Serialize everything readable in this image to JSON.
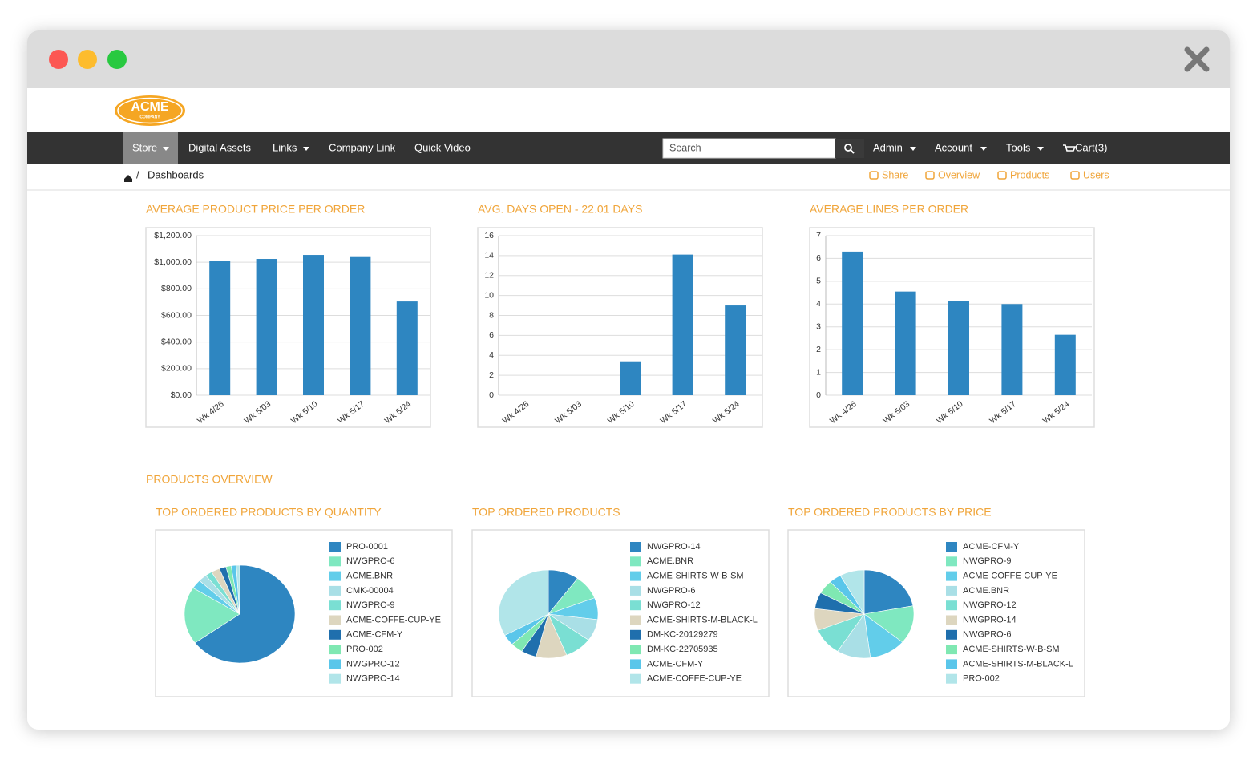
{
  "logo": {
    "name": "ACME",
    "sub": "COMPANY"
  },
  "nav": {
    "left": [
      "Store",
      "Digital Assets",
      "Links",
      "Company Link",
      "Quick Video"
    ],
    "search_placeholder": "Search",
    "right": [
      "Admin",
      "Account",
      "Tools",
      "Cart(3)"
    ]
  },
  "breadcrumb": "Dashboards",
  "actions": [
    "Share",
    "Overview",
    "Products",
    "Users"
  ],
  "section_title": "PRODUCTS OVERVIEW",
  "chart_data": [
    {
      "type": "bar",
      "title": "AVERAGE PRODUCT PRICE PER ORDER",
      "categories": [
        "Wk 4/26",
        "Wk 5/03",
        "Wk 5/10",
        "Wk 5/17",
        "Wk 5/24"
      ],
      "values": [
        1010,
        1025,
        1055,
        1045,
        705
      ],
      "color": "#2e86c1",
      "ylim": [
        0,
        1200
      ],
      "yticks": [
        {
          "value": 0,
          "label": "$0.00"
        },
        {
          "value": 200,
          "label": "$200.00"
        },
        {
          "value": 400,
          "label": "$400.00"
        },
        {
          "value": 600,
          "label": "$600.00"
        },
        {
          "value": 800,
          "label": "$800.00"
        },
        {
          "value": 1000,
          "label": "$1,000.00"
        },
        {
          "value": 1200,
          "label": "$1,200.00"
        }
      ],
      "grid": true
    },
    {
      "type": "bar",
      "title": "AVG. DAYS OPEN - 22.01 DAYS",
      "categories": [
        "Wk 4/26",
        "Wk 5/03",
        "Wk 5/10",
        "Wk 5/17",
        "Wk 5/24"
      ],
      "values": [
        0,
        0,
        3.4,
        14.1,
        9.0
      ],
      "color": "#2e86c1",
      "ylim": [
        0,
        16
      ],
      "yticks": [
        0,
        2,
        4,
        6,
        8,
        10,
        12,
        14,
        16
      ],
      "grid": true
    },
    {
      "type": "bar",
      "title": "AVERAGE LINES PER ORDER",
      "categories": [
        "Wk 4/26",
        "Wk 5/03",
        "Wk 5/10",
        "Wk 5/17",
        "Wk 5/24"
      ],
      "values": [
        6.3,
        4.55,
        4.15,
        4.0,
        2.65
      ],
      "color": "#2e86c1",
      "ylim": [
        0,
        7
      ],
      "yticks": [
        0,
        1,
        2,
        3,
        4,
        5,
        6,
        7
      ],
      "grid": true
    },
    {
      "type": "pie",
      "title": "TOP ORDERED PRODUCTS BY QUANTITY",
      "categories": [
        "PRO-0001",
        "NWGPRO-6",
        "ACME.BNR",
        "CMK-00004",
        "NWGPRO-9",
        "ACME-COFFE-CUP-YE",
        "ACME-CFM-Y",
        "PRO-002",
        "NWGPRO-12",
        "NWGPRO-14"
      ],
      "values": [
        65,
        19,
        3,
        2.5,
        2,
        2.5,
        2,
        1.5,
        1.5,
        1
      ],
      "colors": [
        "#2e86c1",
        "#7fe8c0",
        "#62cdea",
        "#a9dfe6",
        "#7adfd3",
        "#ddd6bf",
        "#1f6fad",
        "#7fe8b2",
        "#5ac6ea",
        "#b1e5e9"
      ]
    },
    {
      "type": "pie",
      "title": "TOP ORDERED PRODUCTS",
      "categories": [
        "NWGPRO-14",
        "ACME.BNR",
        "ACME-SHIRTS-W-B-SM",
        "NWGPRO-6",
        "NWGPRO-12",
        "ACME-SHIRTS-M-BLACK-L",
        "DM-KC-20129279",
        "DM-KC-22705935",
        "ACME-CFM-Y",
        "ACME-COFFE-CUP-YE"
      ],
      "values": [
        10,
        9,
        8,
        8,
        9,
        10,
        5,
        4,
        4,
        33
      ],
      "colors": [
        "#2e86c1",
        "#7fe8c0",
        "#62cdea",
        "#a9dfe6",
        "#7adfd3",
        "#ddd6bf",
        "#1f6fad",
        "#7fe8b2",
        "#5ac6ea",
        "#b1e5e9"
      ]
    },
    {
      "type": "pie",
      "title": "TOP ORDERED PRODUCTS BY PRICE",
      "categories": [
        "ACME-CFM-Y",
        "NWGPRO-9",
        "ACME-COFFE-CUP-YE",
        "ACME.BNR",
        "NWGPRO-12",
        "NWGPRO-14",
        "NWGPRO-6",
        "ACME-SHIRTS-W-B-SM",
        "ACME-SHIRTS-M-BLACK-L",
        "PRO-002"
      ],
      "values": [
        22,
        14,
        12,
        11,
        10,
        8,
        6,
        5,
        4,
        8
      ],
      "colors": [
        "#2e86c1",
        "#7fe8c0",
        "#62cdea",
        "#a9dfe6",
        "#7adfd3",
        "#ddd6bf",
        "#1f6fad",
        "#7fe8b2",
        "#5ac6ea",
        "#b1e5e9"
      ]
    }
  ]
}
